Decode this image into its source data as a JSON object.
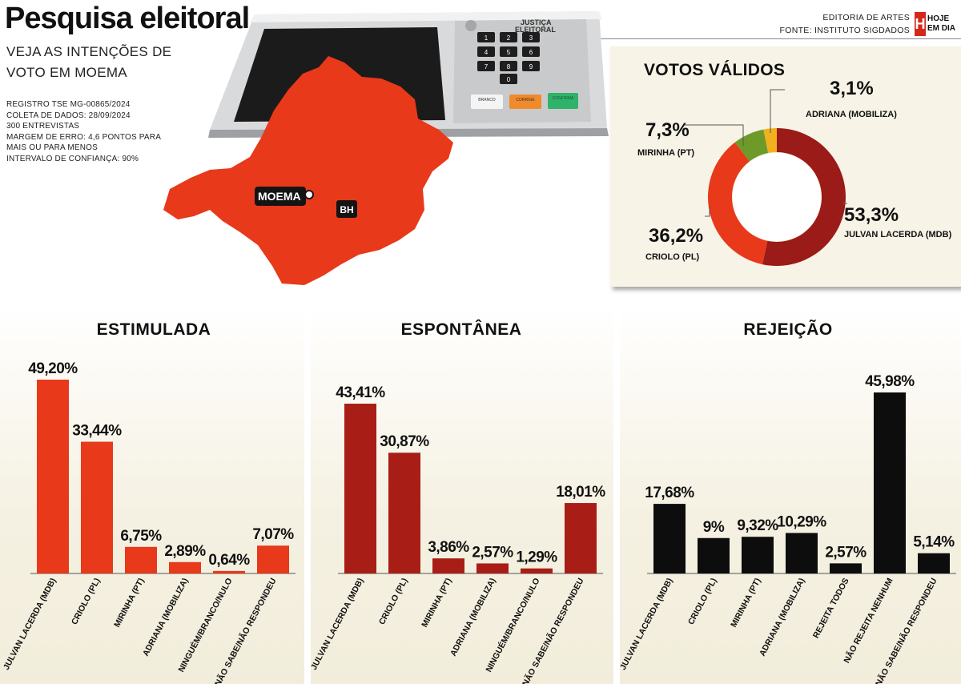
{
  "header": {
    "title": "Pesquisa eleitoral",
    "subtitle": "VEJA AS INTENÇÕES DE VOTO EM MOEMA",
    "meta": [
      "REGISTRO TSE MG-00865/2024",
      "COLETA DE DADOS: 28/09/2024",
      "300 ENTREVISTAS",
      "MARGEM DE ERRO: 4,6 PONTOS PARA",
      "MAIS OU PARA MENOS",
      "INTERVALO DE CONFIANÇA: 90%"
    ],
    "credit_line1": "EDITORIA DE ARTES",
    "credit_line2": "FONTE: INSTITUTO SIGDADOS",
    "logo_letter": "H",
    "logo_line1": "HOJE",
    "logo_line2": "EM DIA"
  },
  "map": {
    "city_label": "MOEMA",
    "capital_label": "BH",
    "color": "#e8391a"
  },
  "urna": {
    "label_line1": "JUSTIÇA",
    "label_line2": "ELEITORAL",
    "keys": [
      "1",
      "2",
      "3",
      "4",
      "5",
      "6",
      "7",
      "8",
      "9",
      "0"
    ],
    "btn_branco": "BRANCO",
    "btn_corrige": "CORRIGE",
    "btn_confirma": "CONFIRMA"
  },
  "chart_data": [
    {
      "type": "pie",
      "title": "VOTOS VÁLIDOS",
      "donut": true,
      "slices": [
        {
          "label": "JULVAN LACERDA (MDB)",
          "value": 53.3,
          "display": "53,3%",
          "color": "#9a1b17"
        },
        {
          "label": "CRIOLO (PL)",
          "value": 36.2,
          "display": "36,2%",
          "color": "#e8391a"
        },
        {
          "label": "MIRINHA (PT)",
          "value": 7.3,
          "display": "7,3%",
          "color": "#6e9a2a"
        },
        {
          "label": "ADRIANA (MOBILIZA)",
          "value": 3.1,
          "display": "3,1%",
          "color": "#f2b01e"
        }
      ]
    },
    {
      "type": "bar",
      "title": "ESTIMULADA",
      "color": "#e8391a",
      "categories": [
        "JULVAN LACERDA (MDB)",
        "CRIOLO (PL)",
        "MIRINHA (PT)",
        "ADRIANA (MOBILIZA)",
        "NINGUÉM/BRANCO/NULO",
        "NÃO SABE/NÃO RESPONDEU"
      ],
      "values": [
        49.2,
        33.44,
        6.75,
        2.89,
        0.64,
        7.07
      ],
      "labels": [
        "49,20%",
        "33,44%",
        "6,75%",
        "2,89%",
        "0,64%",
        "7,07%"
      ]
    },
    {
      "type": "bar",
      "title": "ESPONTÂNEA",
      "color": "#a81e17",
      "categories": [
        "JULVAN LACERDA (MDB)",
        "CRIOLO (PL)",
        "MIRINHA (PT)",
        "ADRIANA (MOBILIZA)",
        "NINGUÉM/BRANCO/NULO",
        "NÃO SABE/NÃO RESPONDEU"
      ],
      "values": [
        43.41,
        30.87,
        3.86,
        2.57,
        1.29,
        18.01
      ],
      "labels": [
        "43,41%",
        "30,87%",
        "3,86%",
        "2,57%",
        "1,29%",
        "18,01%"
      ]
    },
    {
      "type": "bar",
      "title": "REJEIÇÃO",
      "color": "#0d0d0d",
      "categories": [
        "JULVAN LACERDA (MDB)",
        "CRIOLO (PL)",
        "MIRINHA (PT)",
        "ADRIANA (MOBILIZA)",
        "REJEITA TODOS",
        "NÃO REJEITA NENHUM",
        "NÃO SABE/NÃO RESPONDEU"
      ],
      "values": [
        17.68,
        9,
        9.32,
        10.29,
        2.57,
        45.98,
        5.14
      ],
      "labels": [
        "17,68%",
        "9%",
        "9,32%",
        "10,29%",
        "2,57%",
        "45,98%",
        "5,14%"
      ]
    }
  ]
}
